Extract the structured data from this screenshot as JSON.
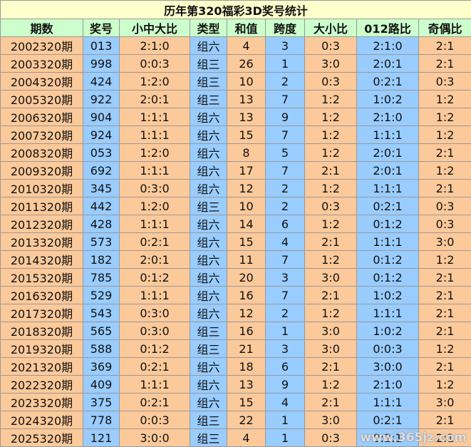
{
  "title": "历年第320福彩3D奖号统计",
  "header": [
    "期数",
    "奖号",
    "小中大比",
    "类型",
    "和值",
    "跨度",
    "大小比",
    "012路比",
    "奇偶比"
  ],
  "rows": [
    [
      "2002320期",
      "013",
      "2:1:0",
      "组六",
      "4",
      "3",
      "0:3",
      "2:1:0",
      "2:1"
    ],
    [
      "2003320期",
      "998",
      "0:0:3",
      "组三",
      "26",
      "1",
      "3:0",
      "2:0:1",
      "2:1"
    ],
    [
      "2004320期",
      "424",
      "1:2:0",
      "组三",
      "10",
      "2",
      "0:3",
      "0:2:1",
      "0:3"
    ],
    [
      "2005320期",
      "922",
      "2:0:1",
      "组三",
      "13",
      "7",
      "1:2",
      "1:0:2",
      "1:2"
    ],
    [
      "2006320期",
      "904",
      "1:1:1",
      "组六",
      "13",
      "9",
      "1:2",
      "2:1:0",
      "1:2"
    ],
    [
      "2007320期",
      "924",
      "1:1:1",
      "组六",
      "15",
      "7",
      "1:2",
      "1:1:1",
      "1:2"
    ],
    [
      "2008320期",
      "053",
      "1:2:0",
      "组六",
      "8",
      "5",
      "1:2",
      "2:0:1",
      "2:1"
    ],
    [
      "2009320期",
      "692",
      "1:1:1",
      "组六",
      "17",
      "7",
      "2:1",
      "2:0:1",
      "1:2"
    ],
    [
      "2010320期",
      "345",
      "0:3:0",
      "组六",
      "12",
      "2",
      "1:2",
      "1:1:1",
      "2:1"
    ],
    [
      "2011320期",
      "442",
      "1:2:0",
      "组三",
      "10",
      "2",
      "0:3",
      "0:2:1",
      "0:3"
    ],
    [
      "2012320期",
      "428",
      "1:1:1",
      "组六",
      "14",
      "6",
      "1:2",
      "0:1:2",
      "0:3"
    ],
    [
      "2013320期",
      "573",
      "0:2:1",
      "组六",
      "15",
      "4",
      "2:1",
      "1:1:1",
      "3:0"
    ],
    [
      "2014320期",
      "182",
      "2:0:1",
      "组六",
      "11",
      "7",
      "1:2",
      "0:1:2",
      "1:2"
    ],
    [
      "2015320期",
      "785",
      "0:1:2",
      "组六",
      "20",
      "3",
      "3:0",
      "0:1:2",
      "2:1"
    ],
    [
      "2016320期",
      "529",
      "1:1:1",
      "组六",
      "16",
      "7",
      "2:1",
      "1:0:2",
      "2:1"
    ],
    [
      "2017320期",
      "543",
      "0:3:0",
      "组六",
      "12",
      "2",
      "1:2",
      "1:1:1",
      "2:1"
    ],
    [
      "2018320期",
      "565",
      "0:3:0",
      "组三",
      "16",
      "1",
      "3:0",
      "1:0:2",
      "2:1"
    ],
    [
      "2019320期",
      "588",
      "0:1:2",
      "组三",
      "21",
      "3",
      "3:0",
      "0:0:3",
      "1:2"
    ],
    [
      "2021320期",
      "369",
      "0:2:1",
      "组六",
      "18",
      "6",
      "2:1",
      "3:0:0",
      "2:1"
    ],
    [
      "2022320期",
      "409",
      "1:1:1",
      "组六",
      "13",
      "9",
      "1:2",
      "2:1:0",
      "1:2"
    ],
    [
      "2023320期",
      "375",
      "0:2:1",
      "组六",
      "15",
      "4",
      "2:1",
      "1:1:1",
      "3:0"
    ],
    [
      "2024320期",
      "778",
      "0:0:3",
      "组三",
      "22",
      "1",
      "3:0",
      "0:2:1",
      "2:1"
    ],
    [
      "2025320期",
      "121",
      "3:0:0",
      "组三",
      "4",
      "1",
      "0:3",
      "0:2:1",
      "2:1"
    ]
  ],
  "watermark": "www.365jz.com"
}
